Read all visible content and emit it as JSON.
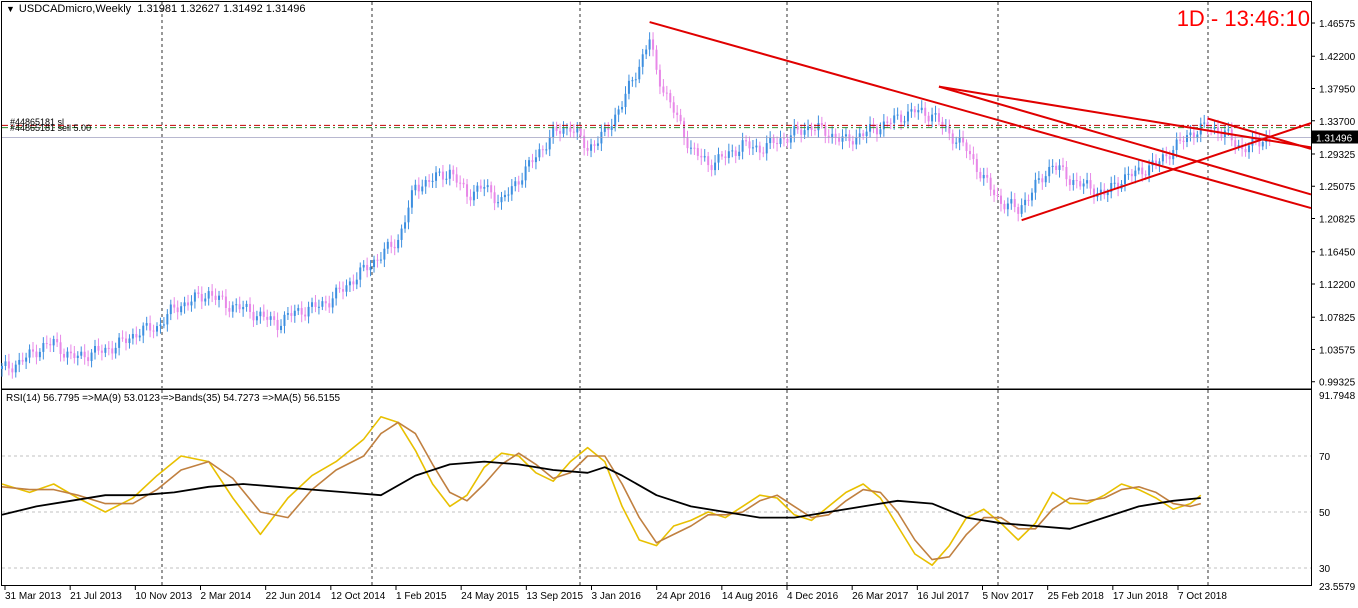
{
  "header": {
    "symbol": "USDCADmicro,Weekly",
    "ohlc": "1.31981 1.32627 1.31492 1.31496"
  },
  "clock": "1D - 13:46:10",
  "order_labels": {
    "sl": "#44865181 sl",
    "sell": "#44865181 sell 5.00"
  },
  "price_label": "1.31496",
  "indicator_header": "RSI(14) 56.7795  =>MA(9) 53.0123  =>Bands(35) 54.7273  =>MA(5) 56.5155",
  "colors": {
    "bull": "#3d8fe0",
    "bear": "#e888e8",
    "trend": "#e00000",
    "rsi": "#e8c000",
    "ma9": "#c08040",
    "bands": "#000000",
    "grid": "#000000",
    "level": "#c0c0c0",
    "sl_line": "#c00000",
    "sell_line": "#2e8b2e"
  },
  "chart_data": [
    {
      "type": "candlestick",
      "yaxis_ticks": [
        "1.46575",
        "1.42200",
        "1.37950",
        "1.33700",
        "1.29325",
        "1.25075",
        "1.20825",
        "1.16450",
        "1.12200",
        "1.07825",
        "1.03575",
        "0.99325"
      ],
      "ylim": [
        0.985,
        1.475
      ],
      "x_ticks": [
        "31 Mar 2013",
        "21 Jul 2013",
        "10 Nov 2013",
        "2 Mar 2014",
        "22 Jun 2014",
        "12 Oct 2014",
        "1 Feb 2015",
        "24 May 2015",
        "13 Sep 2015",
        "3 Jan 2016",
        "24 Apr 2016",
        "14 Aug 2016",
        "4 Dec 2016",
        "26 Mar 2017",
        "16 Jul 2017",
        "5 Nov 2017",
        "25 Feb 2018",
        "17 Jun 2018",
        "7 Oct 2018"
      ],
      "close_path": [
        [
          0,
          1.01
        ],
        [
          5,
          1.018
        ],
        [
          10,
          1.035
        ],
        [
          15,
          1.045
        ],
        [
          20,
          1.025
        ],
        [
          25,
          1.03
        ],
        [
          30,
          1.035
        ],
        [
          35,
          1.045
        ],
        [
          40,
          1.06
        ],
        [
          45,
          1.065
        ],
        [
          50,
          1.09
        ],
        [
          55,
          1.1
        ],
        [
          60,
          1.11
        ],
        [
          65,
          1.095
        ],
        [
          70,
          1.09
        ],
        [
          75,
          1.08
        ],
        [
          80,
          1.07
        ],
        [
          85,
          1.085
        ],
        [
          90,
          1.09
        ],
        [
          95,
          1.1
        ],
        [
          100,
          1.12
        ],
        [
          105,
          1.14
        ],
        [
          110,
          1.16
        ],
        [
          115,
          1.18
        ],
        [
          120,
          1.25
        ],
        [
          125,
          1.26
        ],
        [
          130,
          1.27
        ],
        [
          135,
          1.24
        ],
        [
          140,
          1.25
        ],
        [
          145,
          1.23
        ],
        [
          150,
          1.26
        ],
        [
          155,
          1.29
        ],
        [
          160,
          1.32
        ],
        [
          165,
          1.33
        ],
        [
          170,
          1.3
        ],
        [
          175,
          1.32
        ],
        [
          180,
          1.36
        ],
        [
          185,
          1.41
        ],
        [
          188,
          1.445
        ],
        [
          190,
          1.4
        ],
        [
          195,
          1.35
        ],
        [
          200,
          1.3
        ],
        [
          205,
          1.28
        ],
        [
          210,
          1.29
        ],
        [
          215,
          1.305
        ],
        [
          220,
          1.3
        ],
        [
          225,
          1.31
        ],
        [
          230,
          1.32
        ],
        [
          235,
          1.33
        ],
        [
          240,
          1.32
        ],
        [
          245,
          1.31
        ],
        [
          250,
          1.32
        ],
        [
          255,
          1.33
        ],
        [
          260,
          1.34
        ],
        [
          265,
          1.35
        ],
        [
          270,
          1.345
        ],
        [
          275,
          1.32
        ],
        [
          280,
          1.3
        ],
        [
          285,
          1.26
        ],
        [
          290,
          1.23
        ],
        [
          295,
          1.22
        ],
        [
          300,
          1.25
        ],
        [
          305,
          1.28
        ],
        [
          310,
          1.26
        ],
        [
          315,
          1.25
        ],
        [
          320,
          1.24
        ],
        [
          325,
          1.26
        ],
        [
          330,
          1.27
        ],
        [
          335,
          1.28
        ],
        [
          340,
          1.3
        ],
        [
          345,
          1.32
        ],
        [
          350,
          1.33
        ],
        [
          355,
          1.32
        ],
        [
          360,
          1.3
        ],
        [
          365,
          1.31
        ],
        [
          368,
          1.315
        ]
      ],
      "x_data_range": [
        0,
        380
      ],
      "trendlines": [
        {
          "x1": 188,
          "y1": 1.467,
          "x2": 380,
          "y2": 1.222
        },
        {
          "x1": 272,
          "y1": 1.382,
          "x2": 380,
          "y2": 1.302
        },
        {
          "x1": 272,
          "y1": 1.382,
          "x2": 380,
          "y2": 1.24
        },
        {
          "x1": 296,
          "y1": 1.206,
          "x2": 380,
          "y2": 1.334
        },
        {
          "x1": 350,
          "y1": 1.34,
          "x2": 380,
          "y2": 1.3
        }
      ],
      "order_levels": {
        "sl": 1.331,
        "sell": 1.328,
        "current": 1.31496
      }
    },
    {
      "type": "line",
      "name": "RSI",
      "yaxis_ticks": [
        "91.7948",
        "70",
        "50",
        "30",
        "23.5579"
      ],
      "ylim": [
        23.5579,
        91.7948
      ],
      "levels": [
        70,
        50,
        30
      ],
      "x_data_range": [
        0,
        380
      ],
      "series": [
        {
          "name": "RSI",
          "values": [
            [
              0,
              60
            ],
            [
              8,
              57
            ],
            [
              15,
              60
            ],
            [
              22,
              55
            ],
            [
              30,
              50
            ],
            [
              38,
              55
            ],
            [
              45,
              63
            ],
            [
              52,
              70
            ],
            [
              60,
              68
            ],
            [
              67,
              55
            ],
            [
              75,
              42
            ],
            [
              83,
              55
            ],
            [
              90,
              63
            ],
            [
              97,
              68
            ],
            [
              105,
              76
            ],
            [
              110,
              84
            ],
            [
              115,
              82
            ],
            [
              120,
              72
            ],
            [
              125,
              60
            ],
            [
              130,
              52
            ],
            [
              135,
              56
            ],
            [
              140,
              66
            ],
            [
              145,
              71
            ],
            [
              150,
              70
            ],
            [
              155,
              64
            ],
            [
              160,
              61
            ],
            [
              165,
              68
            ],
            [
              170,
              73
            ],
            [
              175,
              68
            ],
            [
              180,
              52
            ],
            [
              185,
              40
            ],
            [
              190,
              38
            ],
            [
              195,
              45
            ],
            [
              200,
              47
            ],
            [
              205,
              50
            ],
            [
              210,
              48
            ],
            [
              215,
              52
            ],
            [
              220,
              56
            ],
            [
              225,
              55
            ],
            [
              230,
              49
            ],
            [
              235,
              47
            ],
            [
              240,
              52
            ],
            [
              245,
              57
            ],
            [
              250,
              60
            ],
            [
              255,
              55
            ],
            [
              260,
              45
            ],
            [
              265,
              35
            ],
            [
              270,
              31
            ],
            [
              275,
              38
            ],
            [
              280,
              48
            ],
            [
              285,
              51
            ],
            [
              290,
              46
            ],
            [
              295,
              40
            ],
            [
              300,
              46
            ],
            [
              305,
              57
            ],
            [
              310,
              53
            ],
            [
              315,
              53
            ],
            [
              320,
              56
            ],
            [
              325,
              60
            ],
            [
              330,
              58
            ],
            [
              335,
              55
            ],
            [
              340,
              51
            ],
            [
              345,
              53
            ],
            [
              348,
              56
            ]
          ]
        },
        {
          "name": "MA(9)",
          "values": [
            [
              0,
              59
            ],
            [
              8,
              58
            ],
            [
              15,
              58
            ],
            [
              22,
              56
            ],
            [
              30,
              53
            ],
            [
              38,
              53
            ],
            [
              45,
              58
            ],
            [
              52,
              65
            ],
            [
              60,
              68
            ],
            [
              67,
              62
            ],
            [
              75,
              50
            ],
            [
              83,
              48
            ],
            [
              90,
              58
            ],
            [
              97,
              65
            ],
            [
              105,
              70
            ],
            [
              110,
              78
            ],
            [
              115,
              82
            ],
            [
              120,
              78
            ],
            [
              125,
              67
            ],
            [
              130,
              57
            ],
            [
              135,
              54
            ],
            [
              140,
              60
            ],
            [
              145,
              67
            ],
            [
              150,
              71
            ],
            [
              155,
              67
            ],
            [
              160,
              62
            ],
            [
              165,
              64
            ],
            [
              170,
              70
            ],
            [
              175,
              70
            ],
            [
              180,
              60
            ],
            [
              185,
              48
            ],
            [
              190,
              39
            ],
            [
              195,
              42
            ],
            [
              200,
              45
            ],
            [
              205,
              49
            ],
            [
              210,
              49
            ],
            [
              215,
              50
            ],
            [
              220,
              54
            ],
            [
              225,
              56
            ],
            [
              230,
              52
            ],
            [
              235,
              48
            ],
            [
              240,
              49
            ],
            [
              245,
              54
            ],
            [
              250,
              58
            ],
            [
              255,
              57
            ],
            [
              260,
              50
            ],
            [
              265,
              40
            ],
            [
              270,
              33
            ],
            [
              275,
              34
            ],
            [
              280,
              42
            ],
            [
              285,
              48
            ],
            [
              290,
              48
            ],
            [
              295,
              44
            ],
            [
              300,
              44
            ],
            [
              305,
              51
            ],
            [
              310,
              55
            ],
            [
              315,
              54
            ],
            [
              320,
              55
            ],
            [
              325,
              58
            ],
            [
              330,
              59
            ],
            [
              335,
              57
            ],
            [
              340,
              53
            ],
            [
              345,
              52
            ],
            [
              348,
              53
            ]
          ]
        },
        {
          "name": "Bands(35)",
          "values": [
            [
              0,
              49
            ],
            [
              10,
              52
            ],
            [
              20,
              54
            ],
            [
              30,
              56
            ],
            [
              40,
              56
            ],
            [
              50,
              57
            ],
            [
              60,
              59
            ],
            [
              70,
              60
            ],
            [
              80,
              59
            ],
            [
              90,
              58
            ],
            [
              100,
              57
            ],
            [
              110,
              56
            ],
            [
              120,
              63
            ],
            [
              130,
              67
            ],
            [
              140,
              68
            ],
            [
              150,
              67
            ],
            [
              160,
              65
            ],
            [
              170,
              64
            ],
            [
              175,
              66
            ],
            [
              180,
              63
            ],
            [
              190,
              56
            ],
            [
              200,
              52
            ],
            [
              210,
              50
            ],
            [
              220,
              48
            ],
            [
              230,
              48
            ],
            [
              240,
              50
            ],
            [
              250,
              52
            ],
            [
              260,
              54
            ],
            [
              270,
              53
            ],
            [
              280,
              48
            ],
            [
              290,
              46
            ],
            [
              300,
              45
            ],
            [
              310,
              44
            ],
            [
              320,
              48
            ],
            [
              330,
              52
            ],
            [
              340,
              54
            ],
            [
              348,
              55
            ]
          ]
        }
      ]
    }
  ]
}
